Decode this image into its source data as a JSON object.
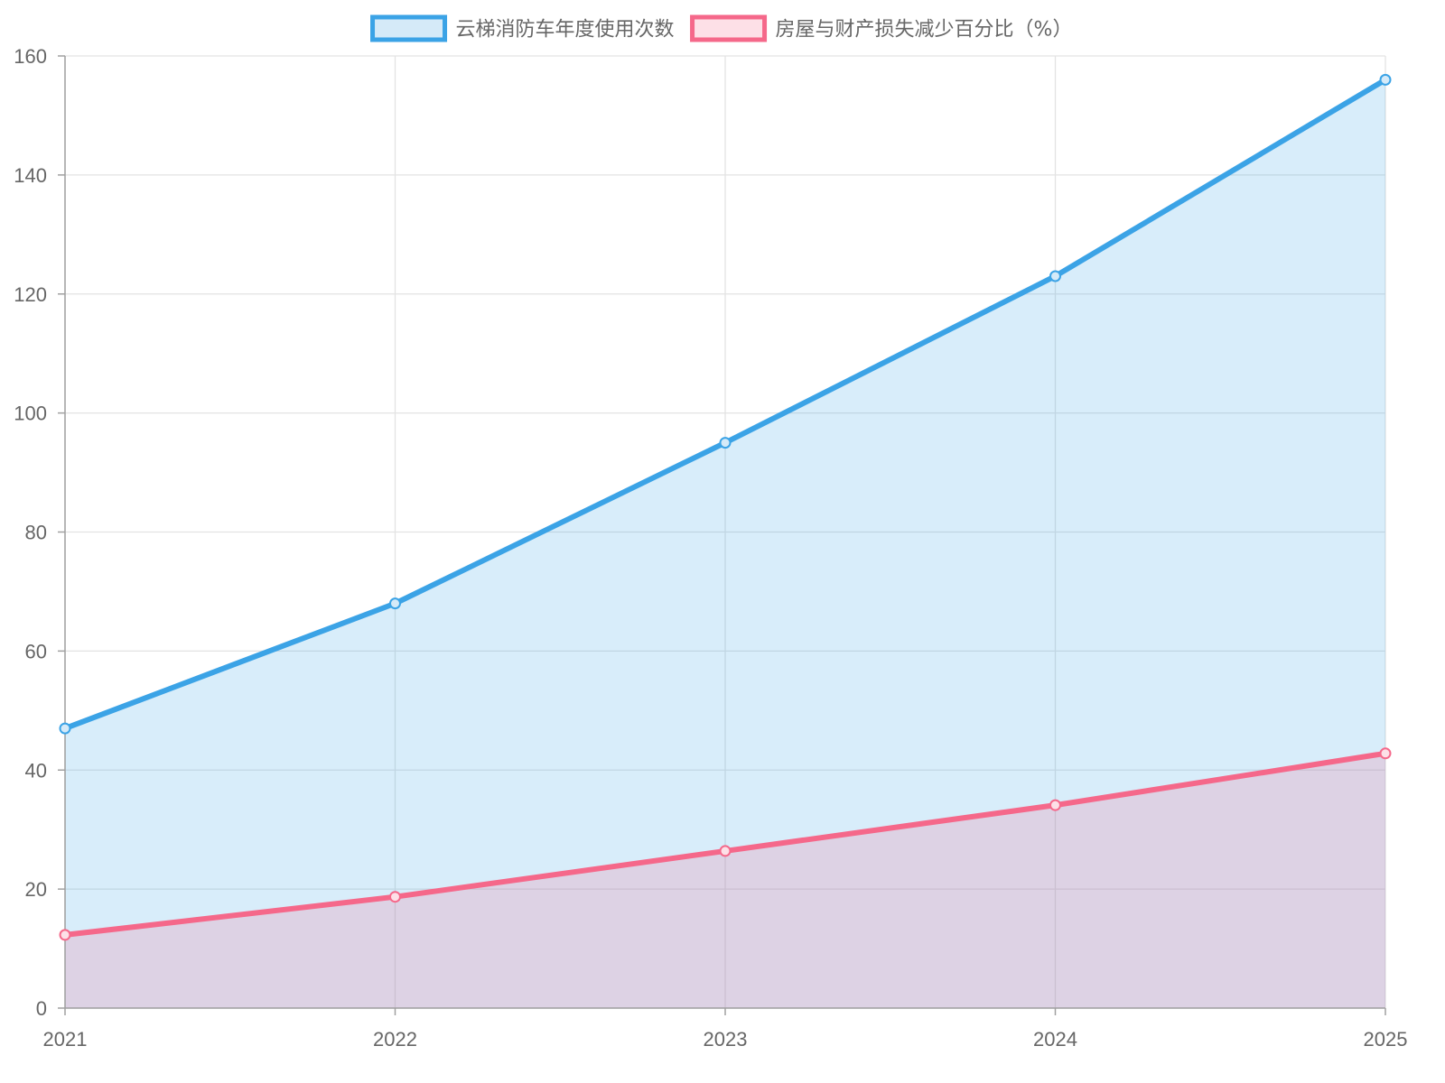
{
  "chart_data": {
    "type": "area",
    "categories": [
      "2021",
      "2022",
      "2023",
      "2024",
      "2025"
    ],
    "series": [
      {
        "name": "云梯消防车年度使用次数",
        "values": [
          47,
          68,
          95,
          123,
          156
        ],
        "color": "#3ba3e6",
        "fill": "#d5eaf8"
      },
      {
        "name": "房屋与财产损失减少百分比（%）",
        "values": [
          12.3,
          18.7,
          26.4,
          34.1,
          42.8
        ],
        "color": "#f5688a",
        "fill": "#fde0e7"
      }
    ],
    "ylim": [
      0,
      160
    ],
    "yticks": [
      "0",
      "20",
      "40",
      "60",
      "80",
      "100",
      "120",
      "140",
      "160"
    ],
    "grid": true,
    "legend": "top-center"
  }
}
